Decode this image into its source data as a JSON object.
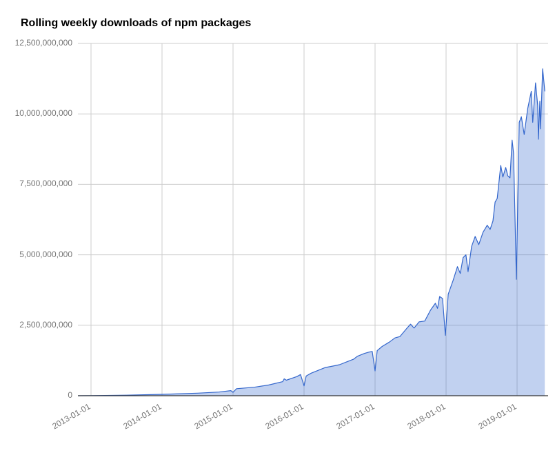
{
  "chart_data": {
    "type": "area",
    "title": "Rolling weekly downloads of npm packages",
    "xlabel": "",
    "ylabel": "",
    "xlim": [
      2012.82,
      2019.44
    ],
    "ylim": [
      0,
      12500000000
    ],
    "grid": true,
    "legend": "none",
    "x_tick_values": [
      2013,
      2014,
      2015,
      2016,
      2017,
      2018,
      2019
    ],
    "x_tick_labels": [
      "2013-01-01",
      "2014-01-01",
      "2015-01-01",
      "2016-01-01",
      "2017-01-01",
      "2018-01-01",
      "2019-01-01"
    ],
    "y_tick_values": [
      0,
      2500000000,
      5000000000,
      7500000000,
      10000000000,
      12500000000
    ],
    "y_tick_labels": [
      "0",
      "2,500,000,000",
      "5,000,000,000",
      "7,500,000,000",
      "10,000,000,000",
      "12,500,000,000"
    ],
    "series": [
      {
        "name": "weekly downloads",
        "color": "#3366cc",
        "x_unit": "decimal year",
        "y_unit": "billions",
        "x": [
          2012.82,
          2013.0,
          2013.5,
          2014.0,
          2014.5,
          2014.8,
          2014.97,
          2015.0,
          2015.05,
          2015.3,
          2015.5,
          2015.7,
          2015.72,
          2015.75,
          2015.9,
          2015.95,
          2016.0,
          2016.03,
          2016.1,
          2016.2,
          2016.3,
          2016.4,
          2016.5,
          2016.6,
          2016.7,
          2016.75,
          2016.85,
          2016.92,
          2016.96,
          2017.0,
          2017.03,
          2017.1,
          2017.2,
          2017.28,
          2017.35,
          2017.45,
          2017.5,
          2017.55,
          2017.62,
          2017.7,
          2017.78,
          2017.85,
          2017.88,
          2017.91,
          2017.95,
          2017.99,
          2018.03,
          2018.1,
          2018.16,
          2018.2,
          2018.24,
          2018.28,
          2018.31,
          2018.36,
          2018.41,
          2018.46,
          2018.52,
          2018.58,
          2018.62,
          2018.66,
          2018.69,
          2018.72,
          2018.77,
          2018.8,
          2018.84,
          2018.87,
          2018.9,
          2018.93,
          2018.95,
          2018.99,
          2019.03,
          2019.06,
          2019.1,
          2019.15,
          2019.2,
          2019.22,
          2019.26,
          2019.29,
          2019.3,
          2019.32,
          2019.33,
          2019.36,
          2019.39
        ],
        "y": [
          0,
          0.005,
          0.02,
          0.05,
          0.09,
          0.13,
          0.18,
          0.12,
          0.25,
          0.3,
          0.38,
          0.5,
          0.6,
          0.55,
          0.68,
          0.75,
          0.35,
          0.7,
          0.8,
          0.9,
          1.0,
          1.05,
          1.1,
          1.2,
          1.3,
          1.4,
          1.5,
          1.55,
          1.57,
          0.88,
          1.6,
          1.75,
          1.9,
          2.05,
          2.1,
          2.4,
          2.54,
          2.4,
          2.62,
          2.65,
          3.03,
          3.28,
          3.1,
          3.52,
          3.45,
          2.14,
          3.6,
          4.1,
          4.58,
          4.34,
          4.9,
          5.0,
          4.4,
          5.3,
          5.65,
          5.36,
          5.8,
          6.05,
          5.9,
          6.2,
          6.87,
          7.0,
          8.17,
          7.76,
          8.1,
          7.8,
          7.73,
          9.07,
          8.6,
          4.13,
          9.7,
          9.9,
          9.27,
          10.2,
          10.8,
          9.7,
          11.1,
          10.3,
          9.1,
          10.45,
          9.47,
          11.6,
          10.8
        ]
      }
    ]
  }
}
